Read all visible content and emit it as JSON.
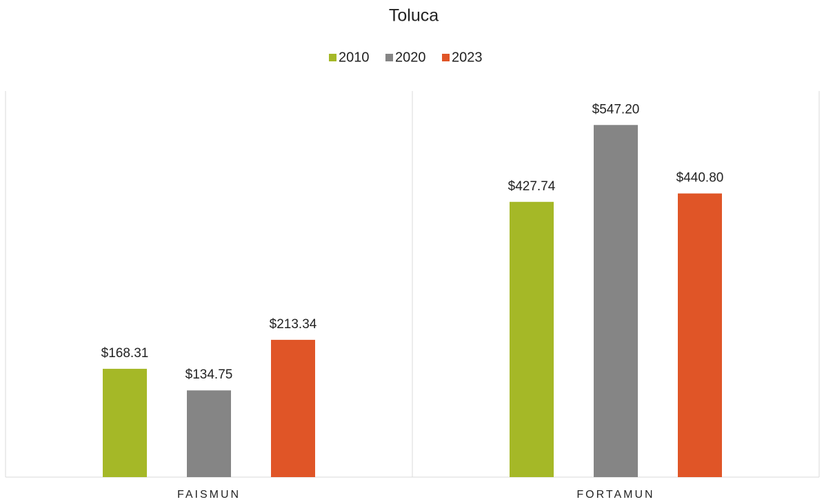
{
  "chart_data": {
    "type": "bar",
    "title": "Toluca",
    "categories": [
      "FAISMUN",
      "FORTAMUN"
    ],
    "series": [
      {
        "name": "2010",
        "color": "#a5b827",
        "values": [
          168.31,
          427.74
        ],
        "value_labels": [
          "$168.31",
          "$427.74"
        ]
      },
      {
        "name": "2020",
        "color": "#858585",
        "values": [
          134.75,
          547.2
        ],
        "value_labels": [
          "$134.75",
          "$547.20"
        ]
      },
      {
        "name": "2023",
        "color": "#e05527",
        "values": [
          213.34,
          440.8
        ],
        "value_labels": [
          "$213.34",
          "$440.80"
        ]
      }
    ],
    "ylim": [
      0,
      600
    ],
    "legend": "top"
  }
}
